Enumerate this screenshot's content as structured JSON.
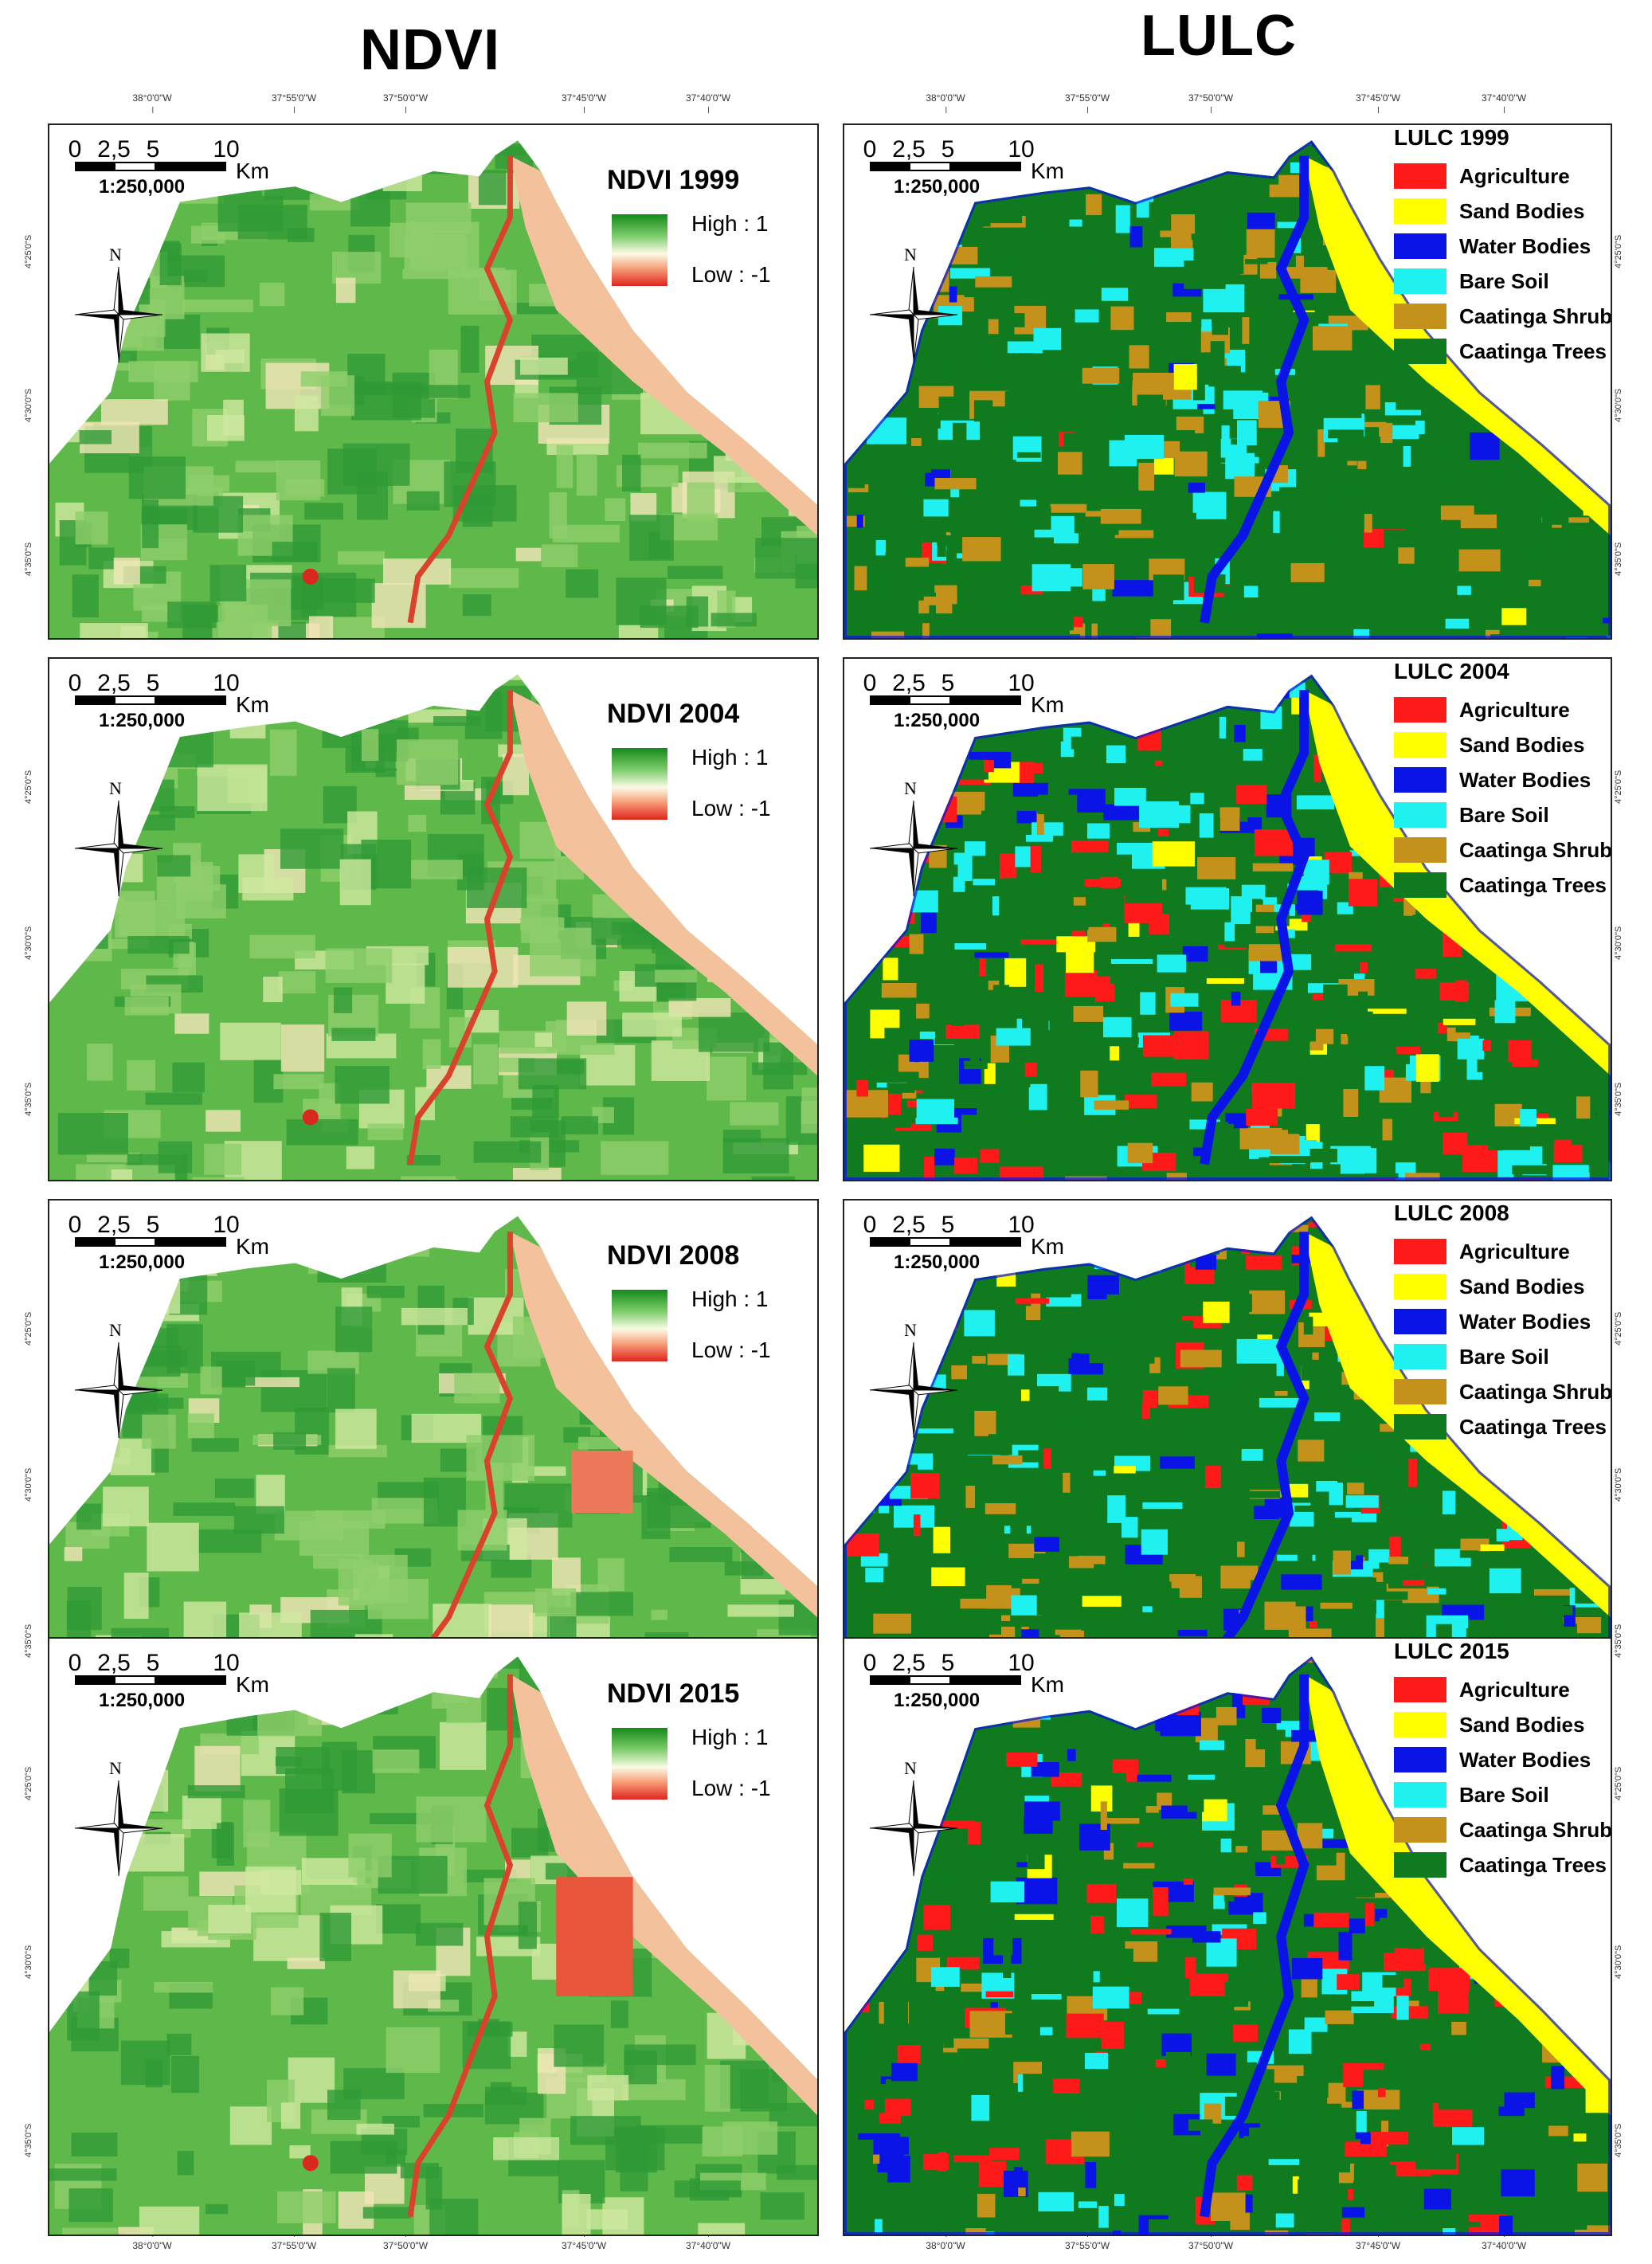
{
  "titles": {
    "ndvi": "NDVI",
    "lulc": "LULC"
  },
  "top_ticks_ndvi": [
    "38°0'0\"W",
    "37°55'0\"W",
    "37°50'0\"W",
    "37°45'0\"W",
    "37°40'0\"W"
  ],
  "top_ticks_lulc": [
    "38°0'0\"W",
    "37°55'0\"W",
    "37°50'0\"W",
    "37°45'0\"W",
    "37°40'0\"W"
  ],
  "bottom_ticks_ndvi": [
    "38°0'0\"W",
    "37°55'0\"W",
    "37°50'0\"W",
    "37°45'0\"W",
    "37°40'0\"W"
  ],
  "bottom_ticks_lulc": [
    "38°0'0\"W",
    "37°55'0\"W",
    "37°50'0\"W",
    "37°45'0\"W",
    "37°40'0\"W"
  ],
  "lat_ticks": [
    "4°25'0\"S",
    "4°30'0\"S",
    "4°35'0\"S"
  ],
  "scale": {
    "labels": [
      "0",
      "2,5",
      "5",
      "10"
    ],
    "unit": "Km",
    "ratio": "1:250,000"
  },
  "north_label": "N",
  "ndvi_legend": {
    "high": "High : 1",
    "low": "Low : -1"
  },
  "ndvi_panels": [
    {
      "title": "NDVI 1999"
    },
    {
      "title": "NDVI 2004"
    },
    {
      "title": "NDVI 2008"
    },
    {
      "title": "NDVI 2015"
    }
  ],
  "lulc_classes": [
    {
      "label": "Agriculture",
      "color": "#ff1a1a"
    },
    {
      "label": "Sand Bodies",
      "color": "#ffff00"
    },
    {
      "label": "Water Bodies",
      "color": "#0a14e6"
    },
    {
      "label": "Bare Soil",
      "color": "#1ff0f0"
    },
    {
      "label": "Caatinga Shrub",
      "color": "#c4921a"
    },
    {
      "label": "Caatinga Trees",
      "color": "#0f7a1e"
    }
  ],
  "lulc_panels": [
    {
      "title": "LULC 1999"
    },
    {
      "title": "LULC 2004"
    },
    {
      "title": "LULC 2008"
    },
    {
      "title": "LULC 2015"
    }
  ]
}
